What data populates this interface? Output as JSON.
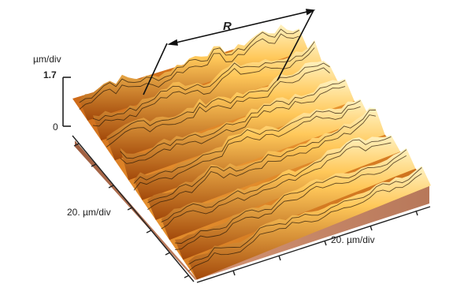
{
  "figure": {
    "z_axis": {
      "unit_label": "µm/div",
      "max_label": "1.7",
      "min_label": "0"
    },
    "x_axis_label": "20. µm/div",
    "y_axis_label": "20. µm/div",
    "marker_label": "R",
    "colors": {
      "surface_dark": "#8a3e08",
      "surface_mid": "#e08a20",
      "surface_light": "#ffd877",
      "side_face": "#c98a68",
      "side_face_dark": "#a86a4c",
      "contour_lines": "#2a1a08"
    }
  }
}
